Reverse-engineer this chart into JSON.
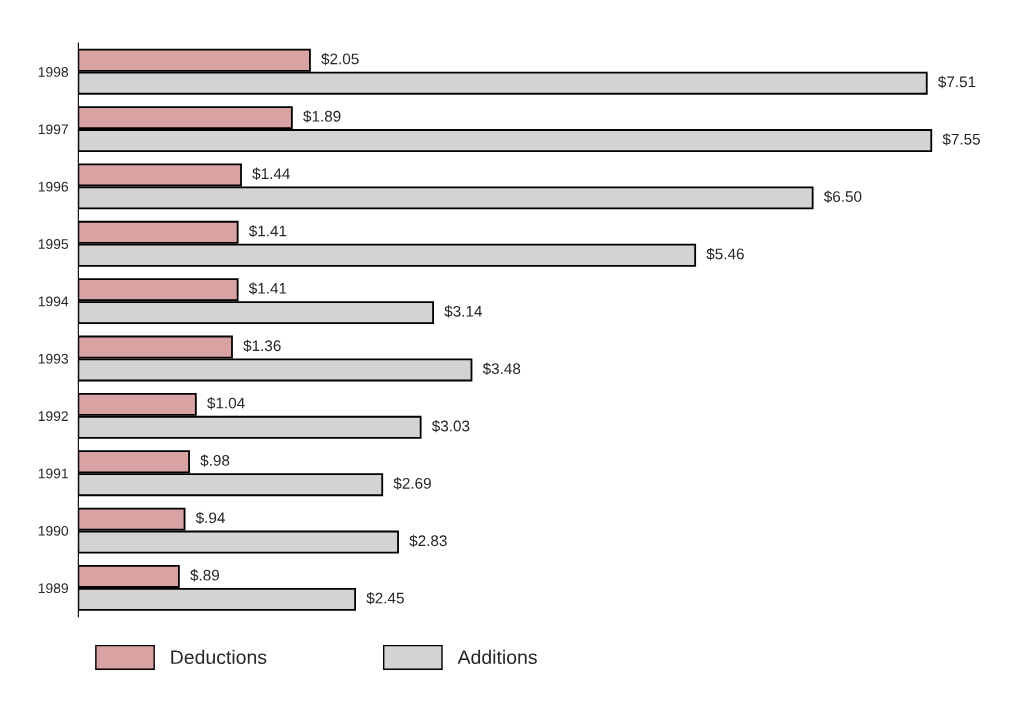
{
  "chart_data": {
    "type": "bar",
    "orientation": "horizontal",
    "categories": [
      "1998",
      "1997",
      "1996",
      "1995",
      "1994",
      "1993",
      "1992",
      "1991",
      "1990",
      "1989"
    ],
    "series": [
      {
        "name": "Deductions",
        "color": "#d9a3a3",
        "values": [
          2.05,
          1.89,
          1.44,
          1.41,
          1.41,
          1.36,
          1.04,
          0.98,
          0.94,
          0.89
        ],
        "value_labels": [
          "$2.05",
          "$1.89",
          "$1.44",
          "$1.41",
          "$1.41",
          "$1.36",
          "$1.04",
          "$.98",
          "$.94",
          "$.89"
        ]
      },
      {
        "name": "Additions",
        "color": "#d3d3d3",
        "values": [
          7.51,
          7.55,
          6.5,
          5.46,
          3.14,
          3.48,
          3.03,
          2.69,
          2.83,
          2.45
        ],
        "value_labels": [
          "$7.51",
          "$7.55",
          "$6.50",
          "$5.46",
          "$3.14",
          "$3.48",
          "$3.03",
          "$2.69",
          "$2.83",
          "$2.45"
        ]
      }
    ],
    "legend": "bottom left",
    "tick_labels": "y",
    "grid": false
  }
}
